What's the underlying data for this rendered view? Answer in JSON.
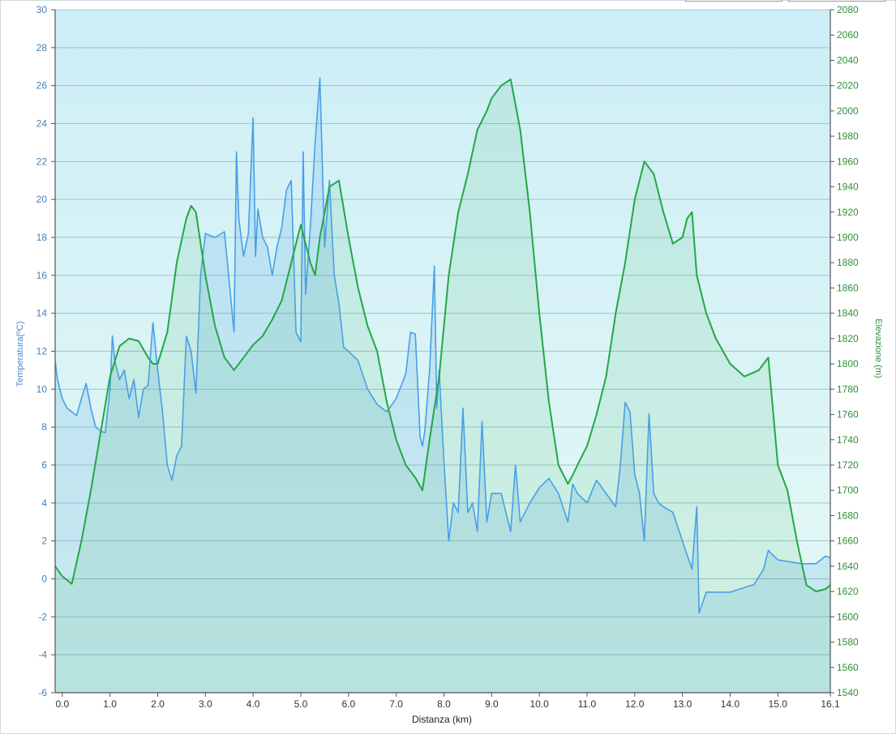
{
  "chart_data": {
    "type": "area",
    "xlabel": "Distanza  (km)",
    "y1label": "Temperatura(ºC)",
    "y2label": "Elevazione (m)",
    "xlim": [
      -0.15,
      16.1
    ],
    "y1lim": [
      -6,
      30
    ],
    "y2lim": [
      1540,
      2080
    ],
    "x_ticks": [
      "0.0",
      "1.0",
      "2.0",
      "3.0",
      "4.0",
      "5.0",
      "6.0",
      "7.0",
      "8.0",
      "9.0",
      "10.0",
      "11.0",
      "12.0",
      "13.0",
      "14.0",
      "15.0",
      "16.1"
    ],
    "x_tick_values": [
      0,
      1,
      2,
      3,
      4,
      5,
      6,
      7,
      8,
      9,
      10,
      11,
      12,
      13,
      14,
      15,
      16.1
    ],
    "y1_ticks": [
      -6,
      -4,
      -2,
      0,
      2,
      4,
      6,
      8,
      10,
      12,
      14,
      16,
      18,
      20,
      22,
      24,
      26,
      28,
      30
    ],
    "y2_ticks": [
      1540,
      1560,
      1580,
      1600,
      1620,
      1640,
      1660,
      1680,
      1700,
      1720,
      1740,
      1760,
      1780,
      1800,
      1820,
      1840,
      1860,
      1880,
      1900,
      1920,
      1940,
      1960,
      1980,
      2000,
      2020,
      2040,
      2060,
      2080
    ],
    "grid": true,
    "colors": {
      "temperature": "#4a9ee6",
      "elevation": "#22a845",
      "bg_top": "#cdeef7",
      "bg_bottom": "#e6f9f4"
    },
    "series": [
      {
        "name": "Temperatura",
        "axis": "left",
        "x": [
          -0.15,
          -0.1,
          0.0,
          0.1,
          0.2,
          0.3,
          0.4,
          0.5,
          0.6,
          0.7,
          0.8,
          0.9,
          1.0,
          1.05,
          1.1,
          1.2,
          1.3,
          1.4,
          1.5,
          1.6,
          1.7,
          1.8,
          1.9,
          2.0,
          2.1,
          2.2,
          2.3,
          2.4,
          2.5,
          2.6,
          2.7,
          2.8,
          2.9,
          3.0,
          3.2,
          3.4,
          3.6,
          3.65,
          3.7,
          3.8,
          3.9,
          4.0,
          4.05,
          4.1,
          4.2,
          4.3,
          4.4,
          4.5,
          4.6,
          4.7,
          4.8,
          4.9,
          5.0,
          5.05,
          5.1,
          5.2,
          5.3,
          5.4,
          5.5,
          5.6,
          5.7,
          5.8,
          5.9,
          6.0,
          6.2,
          6.4,
          6.6,
          6.8,
          7.0,
          7.2,
          7.3,
          7.4,
          7.5,
          7.55,
          7.6,
          7.7,
          7.8,
          7.85,
          7.9,
          8.0,
          8.1,
          8.2,
          8.3,
          8.4,
          8.5,
          8.6,
          8.7,
          8.8,
          8.9,
          9.0,
          9.2,
          9.4,
          9.5,
          9.6,
          9.8,
          10.0,
          10.2,
          10.4,
          10.6,
          10.7,
          10.8,
          11.0,
          11.2,
          11.4,
          11.6,
          11.7,
          11.8,
          11.9,
          12.0,
          12.1,
          12.2,
          12.3,
          12.4,
          12.5,
          12.6,
          12.8,
          13.0,
          13.2,
          13.3,
          13.35,
          13.5,
          14.0,
          14.5,
          14.7,
          14.8,
          15.0,
          15.5,
          15.8,
          16.0,
          16.1
        ],
        "y": [
          11.5,
          10.5,
          9.5,
          9.0,
          8.8,
          8.6,
          9.5,
          10.3,
          9.0,
          8.0,
          7.8,
          7.7,
          10.0,
          12.8,
          11.5,
          10.5,
          11.0,
          9.5,
          10.5,
          8.5,
          10.0,
          10.2,
          13.5,
          11.0,
          8.8,
          6.0,
          5.2,
          6.5,
          7.0,
          12.8,
          12.0,
          9.8,
          16.0,
          18.2,
          18.0,
          18.3,
          13.0,
          22.5,
          19.0,
          17.0,
          18.2,
          24.3,
          17.0,
          19.5,
          18.0,
          17.5,
          16.0,
          17.5,
          18.5,
          20.5,
          21.0,
          13.0,
          12.5,
          22.5,
          15.0,
          18.5,
          23.0,
          26.4,
          17.5,
          21.0,
          16.0,
          14.5,
          12.2,
          12.0,
          11.5,
          10.0,
          9.2,
          8.8,
          9.5,
          10.8,
          13.0,
          12.9,
          7.5,
          7.0,
          7.8,
          11.0,
          16.5,
          9.0,
          11.0,
          6.2,
          2.0,
          4.0,
          3.5,
          9.0,
          3.5,
          4.0,
          2.5,
          8.3,
          3.0,
          4.5,
          4.5,
          2.5,
          6.0,
          3.0,
          4.0,
          4.8,
          5.3,
          4.5,
          3.0,
          5.0,
          4.5,
          4.0,
          5.2,
          4.5,
          3.8,
          6.0,
          9.3,
          8.8,
          5.5,
          4.5,
          2.0,
          8.7,
          4.5,
          4.0,
          3.8,
          3.5,
          2.0,
          0.5,
          3.8,
          -1.8,
          -0.7,
          -0.7,
          -0.3,
          0.5,
          1.5,
          1.0,
          0.8,
          0.8,
          1.2,
          1.1
        ]
      },
      {
        "name": "Elevazione",
        "axis": "right",
        "x": [
          -0.15,
          0.0,
          0.2,
          0.4,
          0.6,
          0.8,
          1.0,
          1.2,
          1.4,
          1.6,
          1.8,
          1.9,
          2.0,
          2.2,
          2.4,
          2.6,
          2.7,
          2.8,
          3.0,
          3.2,
          3.4,
          3.6,
          3.7,
          3.8,
          4.0,
          4.2,
          4.4,
          4.6,
          4.8,
          5.0,
          5.2,
          5.3,
          5.4,
          5.6,
          5.8,
          6.0,
          6.2,
          6.4,
          6.6,
          6.8,
          7.0,
          7.2,
          7.4,
          7.55,
          7.7,
          7.9,
          8.1,
          8.3,
          8.5,
          8.7,
          8.9,
          9.0,
          9.2,
          9.4,
          9.6,
          9.8,
          10.0,
          10.2,
          10.4,
          10.6,
          10.7,
          10.8,
          11.0,
          11.2,
          11.4,
          11.6,
          11.8,
          12.0,
          12.2,
          12.4,
          12.6,
          12.8,
          13.0,
          13.1,
          13.2,
          13.3,
          13.5,
          13.7,
          14.0,
          14.3,
          14.6,
          14.8,
          15.0,
          15.2,
          15.4,
          15.6,
          15.8,
          16.0,
          16.1
        ],
        "y": [
          1640,
          1632,
          1626,
          1660,
          1700,
          1745,
          1790,
          1814,
          1820,
          1818,
          1805,
          1800,
          1800,
          1825,
          1880,
          1915,
          1925,
          1920,
          1870,
          1830,
          1805,
          1795,
          1800,
          1805,
          1815,
          1822,
          1835,
          1850,
          1880,
          1910,
          1880,
          1870,
          1900,
          1940,
          1945,
          1900,
          1860,
          1830,
          1810,
          1770,
          1740,
          1720,
          1710,
          1700,
          1740,
          1790,
          1870,
          1920,
          1950,
          1985,
          2000,
          2010,
          2020,
          2025,
          1985,
          1920,
          1840,
          1770,
          1720,
          1705,
          1712,
          1720,
          1735,
          1760,
          1790,
          1840,
          1880,
          1930,
          1960,
          1950,
          1920,
          1895,
          1900,
          1915,
          1920,
          1870,
          1840,
          1820,
          1800,
          1790,
          1795,
          1805,
          1720,
          1700,
          1660,
          1625,
          1620,
          1622,
          1625
        ]
      }
    ]
  }
}
